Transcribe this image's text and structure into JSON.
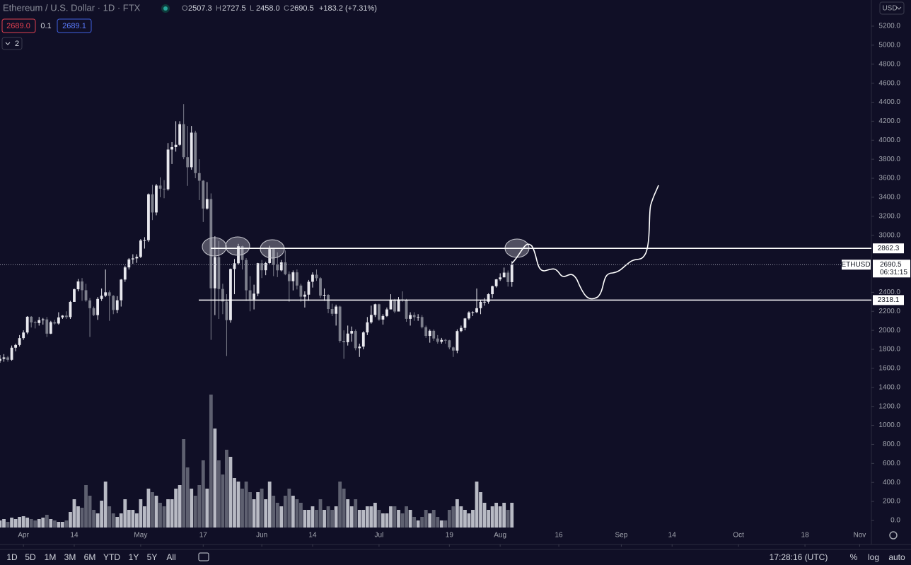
{
  "header": {
    "symbol": "Ethereum / U.S. Dollar · 1D · FTX",
    "ohlc": [
      {
        "label": "O",
        "value": "2507.3"
      },
      {
        "label": "H",
        "value": "2727.5"
      },
      {
        "label": "L",
        "value": "2458.0"
      },
      {
        "label": "C",
        "value": "2690.5"
      }
    ],
    "change": "+183.2 (+7.31%)",
    "bid": "2689.0",
    "spread": "0.1",
    "ask": "2689.1",
    "indicators_count": "2",
    "currency": "USD"
  },
  "chart_data": {
    "type": "candlestick",
    "up_color": "#e8e8ee",
    "down_color": "#7d7f8c",
    "volume_up_color": "#b8bac4",
    "volume_down_color": "#5e6070",
    "x": [
      -6,
      -5,
      -4,
      -3,
      -2,
      -1,
      0,
      1,
      2,
      3,
      4,
      5,
      6,
      7,
      8,
      9,
      10,
      11,
      12,
      13,
      14,
      15,
      16,
      17,
      18,
      19,
      20,
      21,
      22,
      23,
      24,
      25,
      26,
      27,
      28,
      29,
      30,
      31,
      32,
      33,
      34,
      35,
      36,
      37,
      38,
      39,
      40,
      41,
      42,
      43,
      44,
      45,
      46,
      47,
      48,
      49,
      50,
      51,
      52,
      53,
      54,
      55,
      56,
      57,
      58,
      59,
      60,
      61,
      62,
      63,
      64,
      65,
      66,
      67,
      68,
      69,
      70,
      71,
      72,
      73,
      74,
      75,
      76,
      77,
      78,
      79,
      80,
      81,
      82,
      83,
      84,
      85,
      86,
      87,
      88,
      89,
      90,
      91,
      92,
      93,
      94,
      95,
      96,
      97,
      98,
      99,
      100,
      101,
      102,
      103,
      104,
      105,
      106,
      107,
      108,
      109,
      110,
      111,
      112,
      113,
      114,
      115,
      116,
      117,
      118,
      119,
      120,
      121,
      122,
      123,
      124,
      125
    ],
    "open": [
      1680,
      1700,
      1715,
      1690,
      1817,
      1846,
      1918,
      1977,
      2143,
      2083,
      2077,
      2107,
      2115,
      1965,
      2086,
      2072,
      2136,
      2155,
      2139,
      2299,
      2432,
      2514,
      2422,
      2315,
      2233,
      2160,
      2330,
      2364,
      2400,
      2363,
      2214,
      2316,
      2534,
      2662,
      2746,
      2757,
      2773,
      2945,
      2948,
      3431,
      3240,
      3523,
      3490,
      3484,
      3902,
      3928,
      3952,
      4169,
      3822,
      3716,
      4080,
      3654,
      3574,
      3281,
      3381,
      2442,
      2771,
      2435,
      2303,
      2107,
      2645,
      2705,
      2885,
      2740,
      2421,
      2325,
      2386,
      2706,
      2632,
      2708,
      2855,
      2689,
      2631,
      2715,
      2591,
      2517,
      2610,
      2471,
      2354,
      2375,
      2511,
      2585,
      2548,
      2365,
      2373,
      2224,
      2174,
      2250,
      1889,
      1875,
      1966,
      1993,
      1812,
      1829,
      1978,
      2084,
      2162,
      2274,
      2113,
      2151,
      2220,
      2322,
      2198,
      2325,
      2317,
      2121,
      2161,
      2138,
      2140,
      2033,
      1941,
      1995,
      1914,
      1879,
      1899,
      1895,
      1820,
      1787,
      1992,
      2026,
      2125,
      2188,
      2191,
      2233,
      2299,
      2300,
      2380,
      2464,
      2536,
      2557,
      2607,
      2507.3
    ],
    "high": [
      1740,
      1750,
      1730,
      1840,
      1860,
      1950,
      2000,
      2150,
      2150,
      2100,
      2140,
      2130,
      2140,
      2100,
      2110,
      2190,
      2160,
      2200,
      2310,
      2440,
      2540,
      2550,
      2490,
      2340,
      2250,
      2350,
      2440,
      2640,
      2420,
      2370,
      2360,
      2540,
      2680,
      2760,
      2800,
      2800,
      2960,
      2980,
      3440,
      3530,
      3540,
      3610,
      3580,
      3970,
      3980,
      4200,
      4200,
      4380,
      4150,
      4150,
      4100,
      3800,
      3580,
      3560,
      3440,
      2990,
      2940,
      2490,
      2380,
      2650,
      2750,
      2910,
      2890,
      2760,
      2570,
      2480,
      2710,
      2740,
      2720,
      2890,
      2860,
      2820,
      2740,
      2840,
      2620,
      2630,
      2640,
      2490,
      2410,
      2530,
      2610,
      2640,
      2560,
      2440,
      2380,
      2280,
      2270,
      2260,
      2000,
      2050,
      2040,
      2010,
      1860,
      1990,
      2140,
      2260,
      2280,
      2280,
      2170,
      2240,
      2380,
      2330,
      2350,
      2410,
      2330,
      2190,
      2190,
      2170,
      2160,
      2050,
      2010,
      2010,
      1950,
      1920,
      1910,
      1900,
      1830,
      2010,
      2050,
      2130,
      2200,
      2200,
      2440,
      2320,
      2340,
      2390,
      2470,
      2540,
      2600,
      2660,
      2630,
      2727.5
    ],
    "low": [
      1660,
      1670,
      1670,
      1680,
      1780,
      1830,
      1900,
      1960,
      2030,
      2020,
      2050,
      2060,
      1930,
      1960,
      2060,
      2060,
      2120,
      2120,
      2120,
      2300,
      2410,
      2310,
      2300,
      1930,
      2150,
      2110,
      2310,
      2350,
      2100,
      2170,
      2180,
      2250,
      2510,
      2640,
      2700,
      2710,
      2760,
      2860,
      2930,
      3160,
      3210,
      3400,
      3390,
      3470,
      3750,
      3880,
      3940,
      3800,
      3520,
      3690,
      3600,
      3370,
      3140,
      3270,
      1900,
      2160,
      2120,
      2170,
      1730,
      2080,
      2380,
      2690,
      2640,
      2310,
      2200,
      2220,
      2360,
      2550,
      2580,
      2700,
      2570,
      2560,
      2620,
      2580,
      2300,
      2420,
      2430,
      2300,
      2240,
      2310,
      2450,
      2520,
      2340,
      2310,
      2180,
      2150,
      2050,
      1870,
      1700,
      1840,
      1880,
      1790,
      1720,
      1800,
      1950,
      2070,
      2140,
      2100,
      2060,
      2140,
      2220,
      2180,
      2200,
      2300,
      2090,
      2050,
      2100,
      2100,
      2020,
      1920,
      1870,
      1890,
      1860,
      1860,
      1860,
      1800,
      1720,
      1760,
      1980,
      2000,
      2110,
      2150,
      2180,
      2170,
      2260,
      2280,
      2340,
      2450,
      2520,
      2560,
      2460,
      2458.0
    ],
    "close": [
      1700,
      1715,
      1690,
      1817,
      1846,
      1918,
      1977,
      2143,
      2083,
      2077,
      2107,
      2115,
      1965,
      2086,
      2072,
      2136,
      2155,
      2139,
      2299,
      2432,
      2514,
      2422,
      2315,
      2233,
      2160,
      2330,
      2364,
      2400,
      2363,
      2214,
      2316,
      2534,
      2662,
      2746,
      2757,
      2773,
      2945,
      2948,
      3431,
      3240,
      3523,
      3490,
      3484,
      3902,
      3928,
      3952,
      4169,
      3822,
      3716,
      4080,
      3654,
      3574,
      3281,
      3381,
      2442,
      2771,
      2435,
      2303,
      2107,
      2645,
      2705,
      2885,
      2740,
      2421,
      2325,
      2386,
      2706,
      2632,
      2708,
      2855,
      2689,
      2631,
      2715,
      2591,
      2517,
      2610,
      2471,
      2354,
      2375,
      2511,
      2585,
      2548,
      2365,
      2373,
      2224,
      2174,
      2250,
      1889,
      1875,
      1966,
      1993,
      1812,
      1829,
      1978,
      2084,
      2162,
      2274,
      2113,
      2151,
      2220,
      2322,
      2198,
      2325,
      2317,
      2121,
      2161,
      2138,
      2140,
      2033,
      1941,
      1995,
      1914,
      1879,
      1899,
      1895,
      1820,
      1787,
      1992,
      2026,
      2125,
      2188,
      2191,
      2233,
      2299,
      2300,
      2380,
      2464,
      2536,
      2557,
      2607,
      2507.3,
      2690.5
    ],
    "volume": [
      10,
      12,
      8,
      14,
      12,
      15,
      16,
      14,
      12,
      10,
      12,
      14,
      18,
      12,
      10,
      8,
      8,
      10,
      22,
      40,
      30,
      28,
      60,
      45,
      25,
      20,
      38,
      65,
      30,
      20,
      15,
      20,
      40,
      25,
      25,
      20,
      40,
      30,
      55,
      50,
      45,
      35,
      30,
      40,
      40,
      55,
      60,
      125,
      85,
      55,
      45,
      60,
      95,
      55,
      188,
      140,
      95,
      75,
      110,
      100,
      70,
      65,
      55,
      65,
      50,
      40,
      50,
      55,
      40,
      65,
      45,
      35,
      30,
      45,
      55,
      45,
      40,
      35,
      25,
      25,
      30,
      25,
      40,
      25,
      30,
      25,
      30,
      65,
      55,
      40,
      30,
      40,
      25,
      25,
      30,
      30,
      35,
      25,
      20,
      20,
      30,
      30,
      25,
      20,
      30,
      25,
      15,
      10,
      15,
      25,
      20,
      25,
      15,
      10,
      10,
      25,
      30,
      40,
      30,
      25,
      20,
      25,
      65,
      50,
      35,
      25,
      30,
      35,
      30,
      35,
      25,
      35
    ],
    "xlim": [
      -6,
      217
    ],
    "ylim": [
      -253,
      5475
    ],
    "xticks": [
      {
        "value": 0,
        "label": "Apr"
      },
      {
        "value": 13,
        "label": "14"
      },
      {
        "value": 30,
        "label": "May"
      },
      {
        "value": 46,
        "label": "17"
      },
      {
        "value": 61,
        "label": "Jun"
      },
      {
        "value": 74,
        "label": "14"
      },
      {
        "value": 91,
        "label": "Jul"
      },
      {
        "value": 109,
        "label": "19"
      },
      {
        "value": 122,
        "label": "Aug"
      },
      {
        "value": 137,
        "label": "16"
      },
      {
        "value": 153,
        "label": "Sep"
      },
      {
        "value": 166,
        "label": "14"
      },
      {
        "value": 183,
        "label": "Oct"
      },
      {
        "value": 200,
        "label": "18"
      },
      {
        "value": 214,
        "label": "Nov"
      }
    ],
    "yticks": [
      {
        "value": 5200,
        "label": "5200.0"
      },
      {
        "value": 5000,
        "label": "5000.0"
      },
      {
        "value": 4800,
        "label": "4800.0"
      },
      {
        "value": 4600,
        "label": "4600.0"
      },
      {
        "value": 4400,
        "label": "4400.0"
      },
      {
        "value": 4200,
        "label": "4200.0"
      },
      {
        "value": 4000,
        "label": "4000.0"
      },
      {
        "value": 3800,
        "label": "3800.0"
      },
      {
        "value": 3600,
        "label": "3600.0"
      },
      {
        "value": 3400,
        "label": "3400.0"
      },
      {
        "value": 3200,
        "label": "3200.0"
      },
      {
        "value": 3000,
        "label": "3000.0"
      },
      {
        "value": 2400,
        "label": "2400.0"
      },
      {
        "value": 2200,
        "label": "2200.0"
      },
      {
        "value": 2000,
        "label": "2000.0"
      },
      {
        "value": 1800,
        "label": "1800.0"
      },
      {
        "value": 1600,
        "label": "1600.0"
      },
      {
        "value": 1400,
        "label": "1400.0"
      },
      {
        "value": 1200,
        "label": "1200.0"
      },
      {
        "value": 1000,
        "label": "1000.0"
      },
      {
        "value": 800,
        "label": "800.0"
      },
      {
        "value": 600,
        "label": "600.0"
      },
      {
        "value": 400,
        "label": "400.0"
      },
      {
        "value": 200,
        "label": "200.0"
      },
      {
        "value": 0,
        "label": "0.0"
      }
    ],
    "levels": [
      2862.3,
      2318.1
    ],
    "last_price_tag": {
      "symbol": "ETHUSD",
      "countdown": "06:31:15"
    }
  },
  "toolbar": {
    "ranges": [
      "1D",
      "5D",
      "1M",
      "3M",
      "6M",
      "YTD",
      "1Y",
      "5Y",
      "All"
    ],
    "clock": "17:28:16 (UTC)",
    "scale_options": [
      "%",
      "log",
      "auto"
    ]
  }
}
